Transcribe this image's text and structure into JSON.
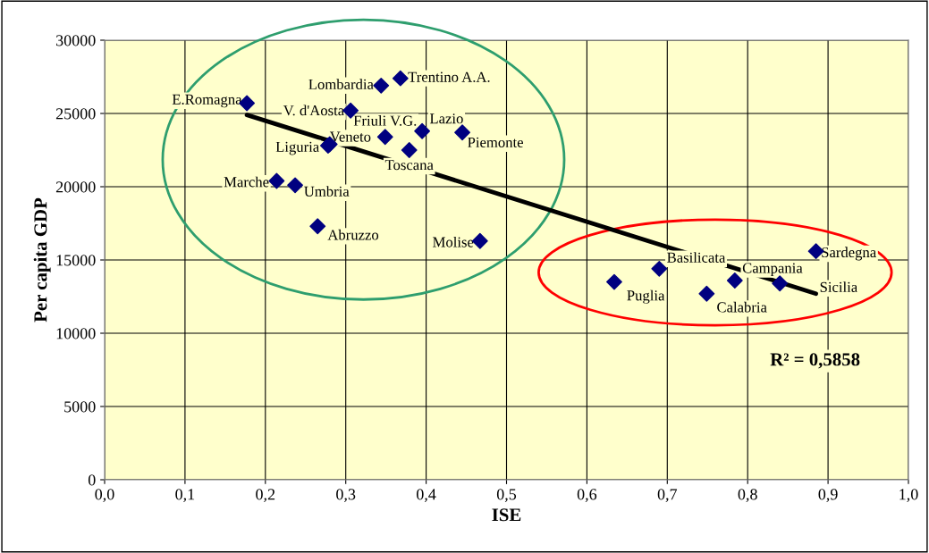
{
  "chart_data": {
    "type": "scatter",
    "xlabel": "ISE",
    "ylabel": "Per capita GDP",
    "xlim": [
      0,
      1
    ],
    "ylim": [
      0,
      30000
    ],
    "xticks": [
      {
        "value": 0,
        "label": "0,0"
      },
      {
        "value": 0.1,
        "label": "0,1"
      },
      {
        "value": 0.2,
        "label": "0,2"
      },
      {
        "value": 0.3,
        "label": "0,3"
      },
      {
        "value": 0.4,
        "label": "0,4"
      },
      {
        "value": 0.5,
        "label": "0,5"
      },
      {
        "value": 0.6,
        "label": "0,6"
      },
      {
        "value": 0.7,
        "label": "0,7"
      },
      {
        "value": 0.8,
        "label": "0,8"
      },
      {
        "value": 0.9,
        "label": "0,9"
      },
      {
        "value": 1.0,
        "label": "1,0"
      }
    ],
    "yticks": [
      0,
      5000,
      10000,
      15000,
      20000,
      25000,
      30000
    ],
    "grid": true,
    "marker": "diamond",
    "series": [
      {
        "color": "#000080",
        "x": [
          0.177,
          0.344,
          0.368,
          0.306,
          0.349,
          0.395,
          0.445,
          0.278,
          0.28,
          0.379,
          0.214,
          0.237,
          0.265,
          0.467
        ],
        "values": [
          25700,
          26900,
          27400,
          25200,
          23400,
          23800,
          23700,
          22800,
          22900,
          22500,
          20400,
          20100,
          17300,
          16300
        ]
      },
      {
        "color": "#000080",
        "x": [
          0.634,
          0.69,
          0.749,
          0.784,
          0.84,
          0.885
        ],
        "values": [
          13500,
          14400,
          12700,
          13600,
          13400,
          15600
        ]
      },
      {
        "type": "line",
        "marker": "none",
        "color": "#000000",
        "x": [
          0.177,
          0.885
        ],
        "values": [
          24900,
          12700
        ]
      }
    ],
    "annotations": [
      {
        "text": "E.Romagna",
        "x": 0.177,
        "y": 25700
      },
      {
        "text": "Lombardia",
        "x": 0.344,
        "y": 26900
      },
      {
        "text": "Trentino A.A.",
        "x": 0.368,
        "y": 27400
      },
      {
        "text": "V. d'Aosta",
        "x": 0.306,
        "y": 25200
      },
      {
        "text": "Friuli V.G.",
        "x": 0.349,
        "y": 23400
      },
      {
        "text": "Lazio",
        "x": 0.395,
        "y": 23800
      },
      {
        "text": "Piemonte",
        "x": 0.445,
        "y": 23700
      },
      {
        "text": "Liguria",
        "x": 0.278,
        "y": 22800
      },
      {
        "text": "Veneto",
        "x": 0.28,
        "y": 22900
      },
      {
        "text": "Toscana",
        "x": 0.379,
        "y": 22500
      },
      {
        "text": "Marche",
        "x": 0.214,
        "y": 20400
      },
      {
        "text": "Umbria",
        "x": 0.237,
        "y": 20100
      },
      {
        "text": "Abruzzo",
        "x": 0.265,
        "y": 17300
      },
      {
        "text": "Molise",
        "x": 0.467,
        "y": 16300
      },
      {
        "text": "Puglia",
        "x": 0.634,
        "y": 13500
      },
      {
        "text": "Basilicata",
        "x": 0.69,
        "y": 14400
      },
      {
        "text": "Calabria",
        "x": 0.749,
        "y": 12700
      },
      {
        "text": "Campania",
        "x": 0.784,
        "y": 13600
      },
      {
        "text": "Sicilia",
        "x": 0.84,
        "y": 13400
      },
      {
        "text": "Sardegna",
        "x": 0.885,
        "y": 15600
      },
      "R² = 0,5858"
    ]
  }
}
